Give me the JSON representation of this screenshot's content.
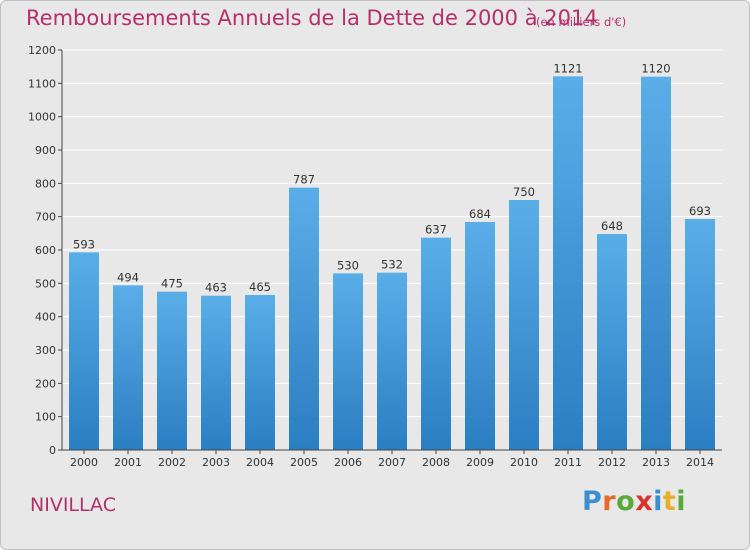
{
  "header": {
    "title": "Remboursements Annuels de la Dette de 2000 à 2014",
    "unit": "(en milliers d'€)"
  },
  "footer": {
    "commune": "NIVILLAC",
    "logo": {
      "letters": [
        "P",
        "r",
        "o",
        "x",
        "i",
        "t",
        "i"
      ],
      "colors": [
        "#3a8fd0",
        "#e86a2a",
        "#5aaa3a",
        "#d8342c",
        "#3a8fd0",
        "#e8b02a",
        "#5aaa3a"
      ]
    }
  },
  "chart_data": {
    "type": "bar",
    "categories": [
      "2000",
      "2001",
      "2002",
      "2003",
      "2004",
      "2005",
      "2006",
      "2007",
      "2008",
      "2009",
      "2010",
      "2011",
      "2012",
      "2013",
      "2014"
    ],
    "values": [
      593,
      494,
      475,
      463,
      465,
      787,
      530,
      532,
      637,
      684,
      750,
      1121,
      648,
      1120,
      693
    ],
    "value_labels": [
      "593",
      "494",
      "475",
      "463",
      "465",
      "787",
      "530",
      "532",
      "637",
      "684",
      "750",
      "1121",
      "648",
      "1120",
      "693"
    ],
    "title": "Remboursements Annuels de la Dette de 2000 à 2014",
    "xlabel": "",
    "ylabel": "",
    "ylim": [
      0,
      1200
    ],
    "yticks": [
      0,
      100,
      200,
      300,
      400,
      500,
      600,
      700,
      800,
      900,
      1000,
      1100,
      1200
    ],
    "grid": true,
    "colors": {
      "bar_top": "#5aaee8",
      "bar_bottom": "#2a7ec2",
      "grid": "#ffffff",
      "axis": "#444444"
    }
  }
}
